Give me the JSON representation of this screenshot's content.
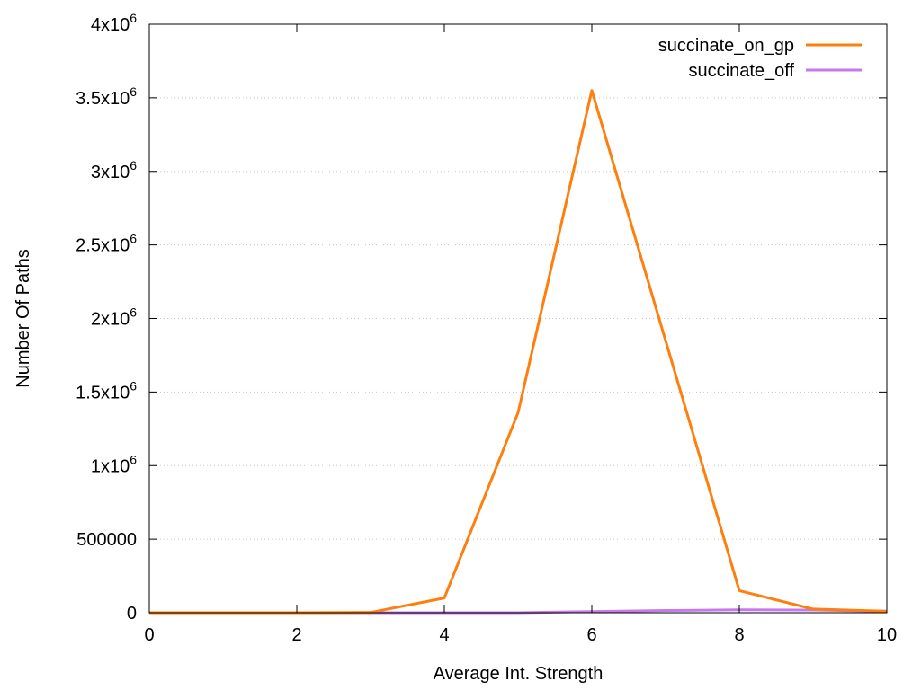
{
  "chart_data": {
    "type": "line",
    "xlabel": "Average Int. Strength",
    "ylabel": "Number Of Paths",
    "xlim": [
      0,
      10
    ],
    "ylim": [
      0,
      4000000
    ],
    "x_ticks": [
      0,
      2,
      4,
      6,
      8,
      10
    ],
    "y_ticks": [
      {
        "value": 0,
        "mantissa": "0",
        "exp": ""
      },
      {
        "value": 500000,
        "mantissa": "500000",
        "exp": ""
      },
      {
        "value": 1000000,
        "mantissa": "1x10",
        "exp": "6"
      },
      {
        "value": 1500000,
        "mantissa": "1.5x10",
        "exp": "6"
      },
      {
        "value": 2000000,
        "mantissa": "2x10",
        "exp": "6"
      },
      {
        "value": 2500000,
        "mantissa": "2.5x10",
        "exp": "6"
      },
      {
        "value": 3000000,
        "mantissa": "3x10",
        "exp": "6"
      },
      {
        "value": 3500000,
        "mantissa": "3.5x10",
        "exp": "6"
      },
      {
        "value": 4000000,
        "mantissa": "4x10",
        "exp": "6"
      }
    ],
    "grid": "horizontal dotted",
    "legend_position": "top-right",
    "x": [
      0,
      1,
      2,
      3,
      4,
      5,
      6,
      7,
      8,
      9,
      10
    ],
    "series": [
      {
        "name": "succinate_on_gp",
        "color": "#ff7f0e",
        "values": [
          0,
          0,
          0,
          2000,
          100000,
          1360000,
          3550000,
          1850000,
          150000,
          25000,
          10000
        ]
      },
      {
        "name": "succinate_off",
        "color": "#c678ec",
        "values": [
          0,
          0,
          0,
          0,
          0,
          0,
          8000,
          15000,
          20000,
          18000,
          10000
        ]
      }
    ]
  }
}
